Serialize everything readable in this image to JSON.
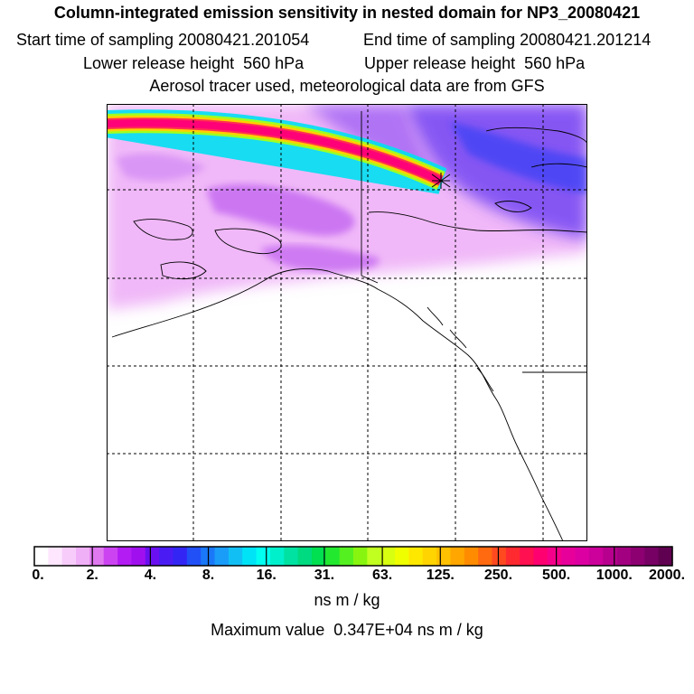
{
  "titles": {
    "main": "Column-integrated emission sensitivity in nested domain for NP3_20080421",
    "start_time": "Start time of sampling 20080421.201054",
    "end_time": "End time of sampling 20080421.201214",
    "lower_release": "Lower release height  560 hPa",
    "upper_release": "Upper release height  560 hPa",
    "tracer_note": "Aerosol tracer used, meteorological data are from GFS"
  },
  "colorbar": {
    "tick_labels": [
      "0.",
      "2.",
      "4.",
      "8.",
      "16.",
      "31.",
      "63.",
      "125.",
      "250.",
      "500.",
      "1000.",
      "2000."
    ],
    "colors": [
      "#ffffff",
      "#fde6fe",
      "#f7ccfa",
      "#f0b0f7",
      "#e078f0",
      "#cc44f2",
      "#b31cf2",
      "#a010ee",
      "#6a10f0",
      "#4a1cf3",
      "#3326f5",
      "#2250f7",
      "#1a78f8",
      "#1a9cf9",
      "#12bff5",
      "#00e3f6",
      "#00fff0",
      "#00f0cc",
      "#00e2a2",
      "#00da80",
      "#00e050",
      "#22e830",
      "#55f020",
      "#88f510",
      "#c0ff20",
      "#d8ff10",
      "#f0ff00",
      "#ffe800",
      "#ffd400",
      "#ffc000",
      "#ffa600",
      "#ff8c00",
      "#ff6a10",
      "#ff4a20",
      "#ff2a30",
      "#ff1050",
      "#ff0070",
      "#f5008a",
      "#e8009a",
      "#dc00a2",
      "#cc009a",
      "#b8008e",
      "#a20080",
      "#8c0072",
      "#760064",
      "#600050"
    ],
    "units": "ns m / kg",
    "max_value": "Maximum value  0.347E+04 ns m / kg"
  }
}
